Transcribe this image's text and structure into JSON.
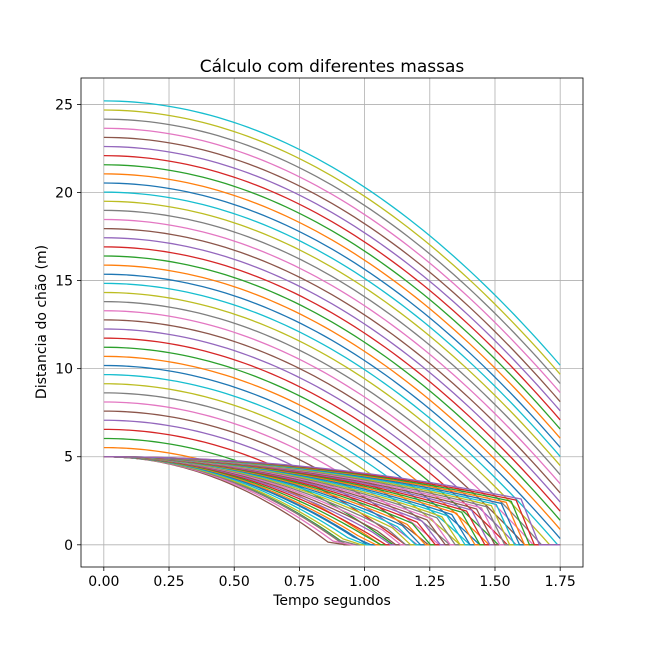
{
  "chart_data": {
    "type": "line",
    "title": "Cálculo com diferentes massas",
    "xlabel": "Tempo segundos",
    "ylabel": "Distancia do chão (m)",
    "xlim": [
      -0.0875,
      1.8375
    ],
    "ylim": [
      -1.26,
      26.5
    ],
    "xticks": [
      0.0,
      0.25,
      0.5,
      0.75,
      1.0,
      1.25,
      1.5,
      1.75
    ],
    "xtick_labels": [
      "0.00",
      "0.25",
      "0.50",
      "0.75",
      "1.00",
      "1.25",
      "1.50",
      "1.75"
    ],
    "yticks": [
      0,
      5,
      10,
      15,
      20,
      25
    ],
    "ytick_labels": [
      "0",
      "5",
      "10",
      "15",
      "20",
      "25"
    ],
    "grid": true,
    "legend": "none",
    "description_of_model": {
      "falling_curves_initial_heights": {
        "start": 5.0,
        "end": 25.2,
        "count": 40
      },
      "gravity": 9.8,
      "end_time": 1.75,
      "ground_value": 0,
      "low_start_curves": {
        "initial_height": 5.0,
        "count": 8,
        "impact_times": [
          0.92,
          0.93
        ]
      },
      "slow_descent": {
        "initial_height": 5.0,
        "count": 40,
        "end_time_range": [
          0.93,
          1.67
        ],
        "kink_height_max": 2.6
      }
    },
    "color_cycle": [
      "#1f77b4",
      "#ff7f0e",
      "#2ca02c",
      "#d62728",
      "#9467bd",
      "#8c564b",
      "#e377c2",
      "#7f7f7f",
      "#bcbd22",
      "#17becf"
    ]
  }
}
